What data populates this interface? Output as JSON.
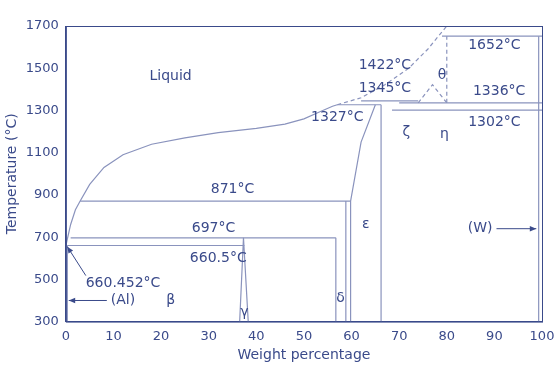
{
  "chart_data": {
    "type": "line",
    "x_label": "Weight percentage",
    "y_label": "Temperature (°C)",
    "xlim": [
      0,
      100
    ],
    "xticks": [
      0,
      10,
      20,
      30,
      40,
      50,
      60,
      70,
      80,
      90,
      100
    ],
    "ylim": [
      300,
      1700
    ],
    "yticks": [
      300,
      500,
      700,
      900,
      1100,
      1300,
      1500,
      1700
    ],
    "grid": false,
    "color": "#8a93bd",
    "series": [
      {
        "x": [
          0,
          1,
          2,
          3,
          5,
          8,
          12,
          18,
          25,
          32,
          40,
          46,
          50,
          53,
          56,
          57
        ],
        "values": [
          660.452,
          760,
          830,
          871,
          950,
          1030,
          1090,
          1140,
          1170,
          1195,
          1215,
          1235,
          1260,
          1290,
          1320,
          1327
        ]
      },
      {
        "x": [
          57,
          62,
          67,
          72,
          76,
          80
        ],
        "values": [
          1327,
          1360,
          1422,
          1500,
          1590,
          1700
        ],
        "line_style": "dashed"
      },
      {
        "x": [
          0.3,
          0.3
        ],
        "values": [
          300,
          660.452
        ]
      },
      {
        "x": [
          0.3,
          37.5
        ],
        "values": [
          660.5,
          660.5
        ]
      },
      {
        "x": [
          1,
          56.7
        ],
        "values": [
          697,
          697
        ]
      },
      {
        "x": [
          3,
          59.8
        ],
        "values": [
          871,
          871
        ]
      },
      {
        "x": [
          36.5,
          37.3,
          38.3
        ],
        "values": [
          300,
          697,
          300
        ]
      },
      {
        "x": [
          56.7,
          56.7
        ],
        "values": [
          300,
          697
        ]
      },
      {
        "x": [
          58.8,
          58.8
        ],
        "values": [
          300,
          871
        ]
      },
      {
        "x": [
          59.8,
          59.8,
          62,
          65
        ],
        "values": [
          300,
          871,
          1150,
          1327
        ]
      },
      {
        "x": [
          66.2,
          66.2
        ],
        "values": [
          300,
          1327
        ]
      },
      {
        "x": [
          57,
          66.2
        ],
        "values": [
          1327,
          1327
        ]
      },
      {
        "x": [
          62,
          74
        ],
        "values": [
          1345,
          1345
        ]
      },
      {
        "x": [
          70,
          100
        ],
        "values": [
          1336,
          1336
        ]
      },
      {
        "x": [
          68.5,
          100
        ],
        "values": [
          1302,
          1302
        ]
      },
      {
        "x": [
          74,
          77,
          80
        ],
        "values": [
          1336,
          1422,
          1336
        ],
        "line_style": "dashed"
      },
      {
        "x": [
          80,
          80
        ],
        "values": [
          1336,
          1652
        ],
        "line_style": "dashed"
      },
      {
        "x": [
          79,
          100
        ],
        "values": [
          1652,
          1652
        ]
      },
      {
        "x": [
          99.3,
          99.3
        ],
        "values": [
          300,
          1652
        ]
      }
    ],
    "annotations": [
      {
        "text": "Liquid",
        "x": 22,
        "y": 1460
      },
      {
        "text": "1652°C",
        "x": 90,
        "y": 1610
      },
      {
        "text": "1422°C",
        "x": 67,
        "y": 1515
      },
      {
        "text": "θ",
        "x": 79,
        "y": 1465
      },
      {
        "text": "1345°C",
        "x": 67,
        "y": 1405
      },
      {
        "text": "1336°C",
        "x": 91,
        "y": 1390
      },
      {
        "text": "1327°C",
        "x": 57,
        "y": 1265
      },
      {
        "text": "1302°C",
        "x": 90,
        "y": 1245
      },
      {
        "text": "ζ",
        "x": 71.5,
        "y": 1195
      },
      {
        "text": "η",
        "x": 79.5,
        "y": 1185
      },
      {
        "text": "871°C",
        "x": 35,
        "y": 925
      },
      {
        "text": "697°C",
        "x": 31,
        "y": 740
      },
      {
        "text": "660.5°C",
        "x": 32,
        "y": 600
      },
      {
        "text": "660.452°C",
        "x": 12,
        "y": 480,
        "arrow_to": [
          0.3,
          655
        ]
      },
      {
        "text": "(Al)",
        "x": 12,
        "y": 400,
        "arrow_to": [
          0.6,
          400
        ]
      },
      {
        "text": "β",
        "x": 22,
        "y": 400
      },
      {
        "text": "γ",
        "x": 37.5,
        "y": 345
      },
      {
        "text": "δ",
        "x": 57.7,
        "y": 410
      },
      {
        "text": "ε",
        "x": 63,
        "y": 760
      },
      {
        "text": "(W)",
        "x": 87,
        "y": 740,
        "arrow_to": [
          98.8,
          740
        ]
      }
    ]
  }
}
